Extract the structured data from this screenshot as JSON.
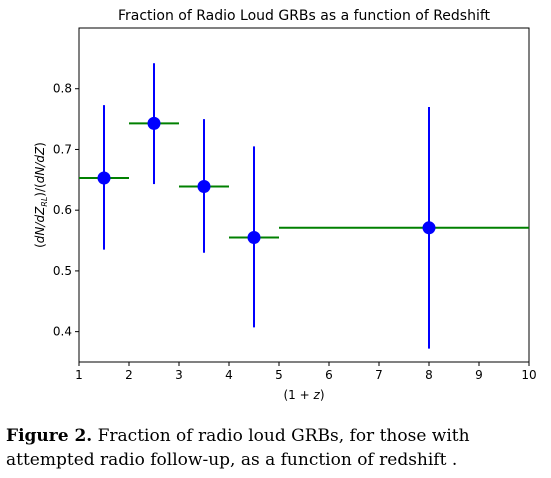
{
  "chart_data": {
    "type": "scatter",
    "title": "Fraction of Radio Loud GRBs as a function of Redshift",
    "xlabel": "(1 + z)",
    "ylabel": "(dN/dZ_RL)/(dN/dZ)",
    "xlim": [
      1,
      10
    ],
    "ylim": [
      0.35,
      0.9
    ],
    "xticks": [
      1,
      2,
      3,
      4,
      5,
      6,
      7,
      8,
      9,
      10
    ],
    "yticks": [
      0.4,
      0.5,
      0.6,
      0.7,
      0.8
    ],
    "points": [
      {
        "x": 1.5,
        "y": 0.653,
        "xmin": 1.0,
        "xmax": 2.0,
        "ymin": 0.535,
        "ymax": 0.773
      },
      {
        "x": 2.5,
        "y": 0.743,
        "xmin": 2.0,
        "xmax": 3.0,
        "ymin": 0.643,
        "ymax": 0.842
      },
      {
        "x": 3.5,
        "y": 0.639,
        "xmin": 3.0,
        "xmax": 4.0,
        "ymin": 0.53,
        "ymax": 0.75
      },
      {
        "x": 4.5,
        "y": 0.555,
        "xmin": 4.0,
        "xmax": 5.0,
        "ymin": 0.407,
        "ymax": 0.705
      },
      {
        "x": 8.0,
        "y": 0.571,
        "xmin": 5.0,
        "xmax": 10.0,
        "ymin": 0.372,
        "ymax": 0.77
      }
    ],
    "colors": {
      "point": "#0000ff",
      "y_error": "#0000ff",
      "x_error": "#008000"
    },
    "grid": false
  },
  "caption": {
    "label": "Figure 2.",
    "text": "Fraction of radio loud GRBs, for those with attempted radio follow-up, as a function of redshift ."
  }
}
